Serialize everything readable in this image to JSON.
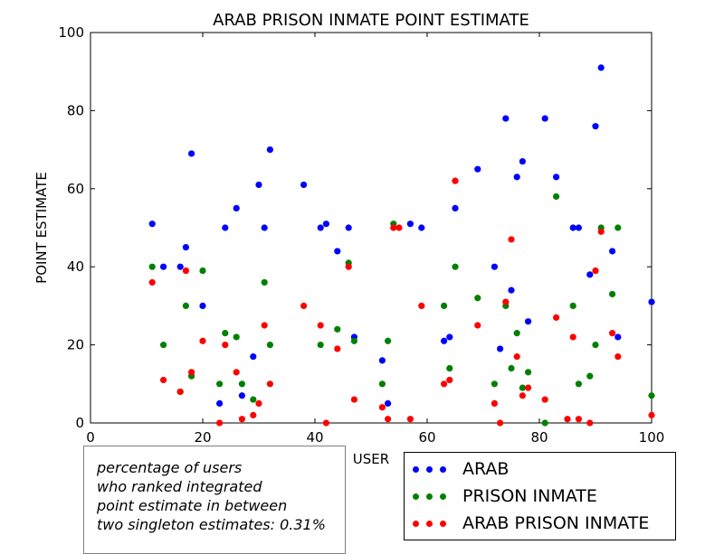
{
  "chart_data": {
    "type": "scatter",
    "title": "ARAB PRISON INMATE POINT ESTIMATE",
    "xlabel": "USER",
    "ylabel": "POINT ESTIMATE",
    "xlim": [
      0,
      100
    ],
    "ylim": [
      0,
      100
    ],
    "xticks": [
      0,
      20,
      40,
      60,
      80,
      100
    ],
    "yticks": [
      0,
      20,
      40,
      60,
      80,
      100
    ],
    "grid": false,
    "legend_position": "bottom-right",
    "series": [
      {
        "name": "ARAB",
        "color": "#0000ff",
        "x": [
          11,
          13,
          16,
          17,
          18,
          20,
          23,
          24,
          26,
          27,
          29,
          30,
          31,
          32,
          38,
          41,
          42,
          44,
          46,
          47,
          52,
          53,
          57,
          59,
          63,
          64,
          65,
          69,
          72,
          73,
          74,
          75,
          76,
          77,
          78,
          81,
          83,
          86,
          87,
          89,
          90,
          91,
          93,
          94,
          100
        ],
        "y": [
          51,
          40,
          40,
          45,
          69,
          30,
          5,
          50,
          55,
          7,
          17,
          61,
          50,
          70,
          61,
          50,
          51,
          44,
          50,
          22,
          16,
          5,
          51,
          50,
          21,
          22,
          55,
          65,
          40,
          19,
          78,
          34,
          63,
          67,
          26,
          78,
          63,
          50,
          50,
          38,
          76,
          91,
          44,
          22,
          31
        ]
      },
      {
        "name": "PRISON INMATE",
        "color": "#008000",
        "x": [
          11,
          13,
          16,
          17,
          18,
          20,
          23,
          24,
          26,
          27,
          29,
          31,
          32,
          41,
          44,
          46,
          47,
          52,
          53,
          54,
          63,
          64,
          65,
          69,
          72,
          74,
          75,
          76,
          77,
          78,
          81,
          83,
          86,
          87,
          89,
          90,
          91,
          93,
          94,
          100
        ],
        "y": [
          40,
          20,
          8,
          30,
          12,
          39,
          10,
          23,
          22,
          10,
          6,
          36,
          20,
          20,
          24,
          41,
          21,
          10,
          21,
          51,
          30,
          14,
          40,
          32,
          10,
          30,
          14,
          23,
          9,
          13,
          0,
          58,
          30,
          10,
          12,
          20,
          50,
          33,
          50,
          7
        ]
      },
      {
        "name": "ARAB PRISON INMATE",
        "color": "#ff0000",
        "x": [
          11,
          13,
          16,
          17,
          18,
          20,
          23,
          24,
          26,
          27,
          29,
          30,
          31,
          32,
          38,
          41,
          42,
          44,
          46,
          47,
          52,
          53,
          54,
          55,
          57,
          59,
          63,
          64,
          65,
          69,
          72,
          73,
          74,
          75,
          76,
          77,
          78,
          81,
          83,
          85,
          86,
          87,
          89,
          90,
          91,
          93,
          94,
          100
        ],
        "y": [
          36,
          11,
          8,
          39,
          13,
          21,
          0,
          20,
          13,
          1,
          2,
          5,
          25,
          10,
          30,
          25,
          0,
          19,
          40,
          6,
          4,
          1,
          50,
          50,
          1,
          30,
          10,
          11,
          62,
          25,
          5,
          0,
          31,
          47,
          17,
          7,
          9,
          6,
          27,
          1,
          22,
          1,
          0,
          39,
          49,
          23,
          17,
          2
        ]
      }
    ]
  },
  "annotation": {
    "lines": [
      "percentage of users",
      "who ranked integrated",
      "point estimate in between",
      "two singleton estimates: 0.31%"
    ]
  }
}
